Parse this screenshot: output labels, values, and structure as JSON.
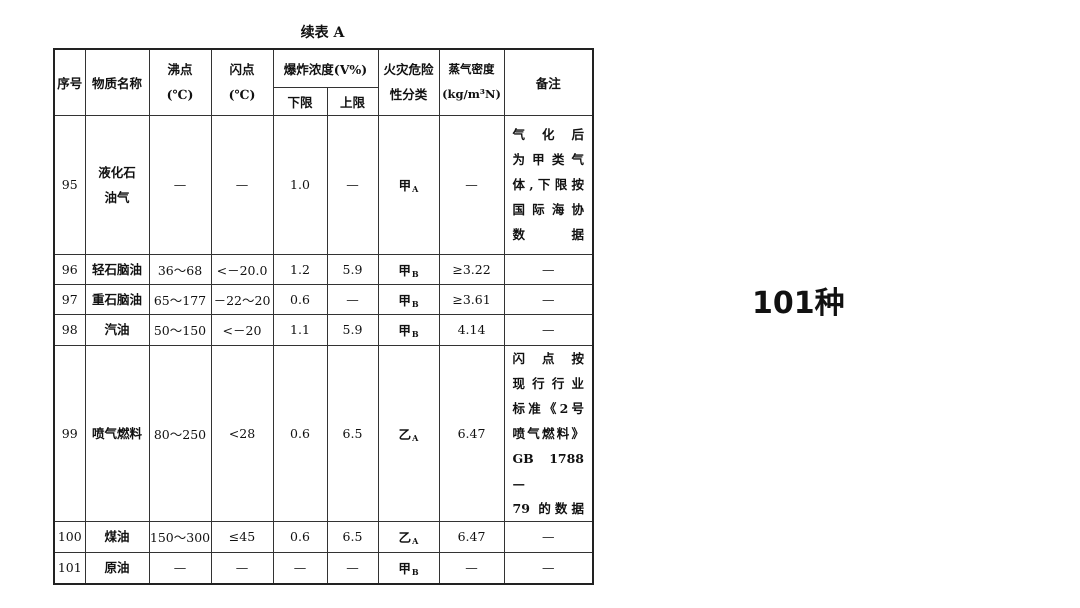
{
  "caption": "续表 A",
  "headers": {
    "no": "序号",
    "name": "物质名称",
    "boiling": "沸点\n(℃)",
    "flash": "闪点\n(℃)",
    "explosive": "爆炸浓度(V%)",
    "lower": "下限",
    "upper": "上限",
    "fire_class": "火灾危险\n性分类",
    "vapor_density": "蒸气密度\n(kg/m³N)",
    "remarks": "备注"
  },
  "rows": [
    {
      "no": "95",
      "name": "液化石\n油气",
      "boiling": "—",
      "flash": "—",
      "lower": "1.0",
      "upper": "—",
      "class": "甲",
      "class_sub": "A",
      "density": "—",
      "remarks": "气化后\n为甲类气\n体,下限按\n国际海协\n数据"
    },
    {
      "no": "96",
      "name": "轻石脑油",
      "boiling": "36～68",
      "flash": "<－20.0",
      "lower": "1.2",
      "upper": "5.9",
      "class": "甲",
      "class_sub": "B",
      "density": "≥3.22",
      "remarks": "—"
    },
    {
      "no": "97",
      "name": "重石脑油",
      "boiling": "65～177",
      "flash": "－22～20",
      "lower": "0.6",
      "upper": "—",
      "class": "甲",
      "class_sub": "B",
      "density": "≥3.61",
      "remarks": "—"
    },
    {
      "no": "98",
      "name": "汽油",
      "boiling": "50～150",
      "flash": "<－20",
      "lower": "1.1",
      "upper": "5.9",
      "class": "甲",
      "class_sub": "B",
      "density": "4.14",
      "remarks": "—"
    },
    {
      "no": "99",
      "name": "喷气燃料",
      "boiling": "80～250",
      "flash": "<28",
      "lower": "0.6",
      "upper": "6.5",
      "class": "乙",
      "class_sub": "A",
      "density": "6.47",
      "remarks": "闪点按\n现行行业\n标准《2号\n喷气燃料》\nGB 1788—\n79 的数据"
    },
    {
      "no": "100",
      "name": "煤油",
      "boiling": "150～300",
      "flash": "≤45",
      "lower": "0.6",
      "upper": "6.5",
      "class": "乙",
      "class_sub": "A",
      "density": "6.47",
      "remarks": "—"
    },
    {
      "no": "101",
      "name": "原油",
      "boiling": "—",
      "flash": "—",
      "lower": "—",
      "upper": "—",
      "class": "甲",
      "class_sub": "B",
      "density": "—",
      "remarks": "—"
    }
  ],
  "side_label": "101种"
}
